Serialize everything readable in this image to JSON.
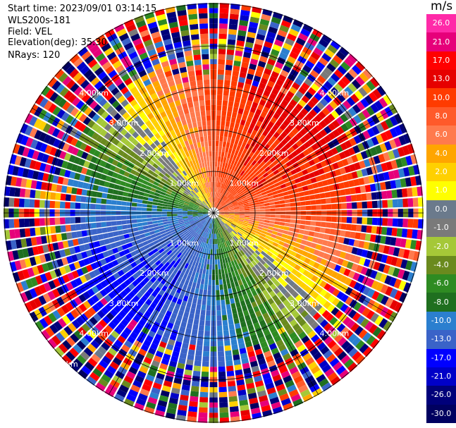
{
  "header": {
    "start_time": "Start time: 2023/09/01 03:14:15",
    "instrument": "WLS200s-181",
    "field": "Field: VEL",
    "elevation": "Elevation(deg): 35.30",
    "nrays": "NRays: 120"
  },
  "colorbar": {
    "unit": "m/s",
    "labels": [
      "26.0",
      "21.0",
      "17.0",
      "13.0",
      "10.0",
      "8.0",
      "6.0",
      "4.0",
      "2.0",
      "1.0",
      "0.0",
      "-1.0",
      "-2.0",
      "-4.0",
      "-6.0",
      "-8.0",
      "-10.0",
      "-13.0",
      "-17.0",
      "-21.0",
      "-26.0",
      "-30.0"
    ],
    "colors": [
      "#ff2aa8",
      "#e6007a",
      "#ff0000",
      "#e60000",
      "#ff3b00",
      "#ff5a2a",
      "#ff7a4d",
      "#ffa500",
      "#ffd000",
      "#ffff00",
      "#6b7a8c",
      "#7a7a7a",
      "#a5c838",
      "#6a8a1e",
      "#2e8b22",
      "#1f6f1f",
      "#2b7fcf",
      "#3a63c8",
      "#0000ff",
      "#0000c8",
      "#00007a",
      "#000060"
    ]
  },
  "chart_data": {
    "type": "ppi",
    "field": "VEL",
    "units": "m/s",
    "nrays": 120,
    "range_rings_km": [
      1,
      2,
      3,
      4,
      5
    ],
    "range_labels": [
      "1.00km",
      "2.00km",
      "3.00km",
      "4.00km",
      "5.00km"
    ],
    "vmin": -30,
    "vmax": 26,
    "wind_pattern": {
      "receding_direction": "northeast",
      "approaching_direction": "southwest",
      "max_velocity_near": 17,
      "min_velocity_near": -17
    }
  }
}
